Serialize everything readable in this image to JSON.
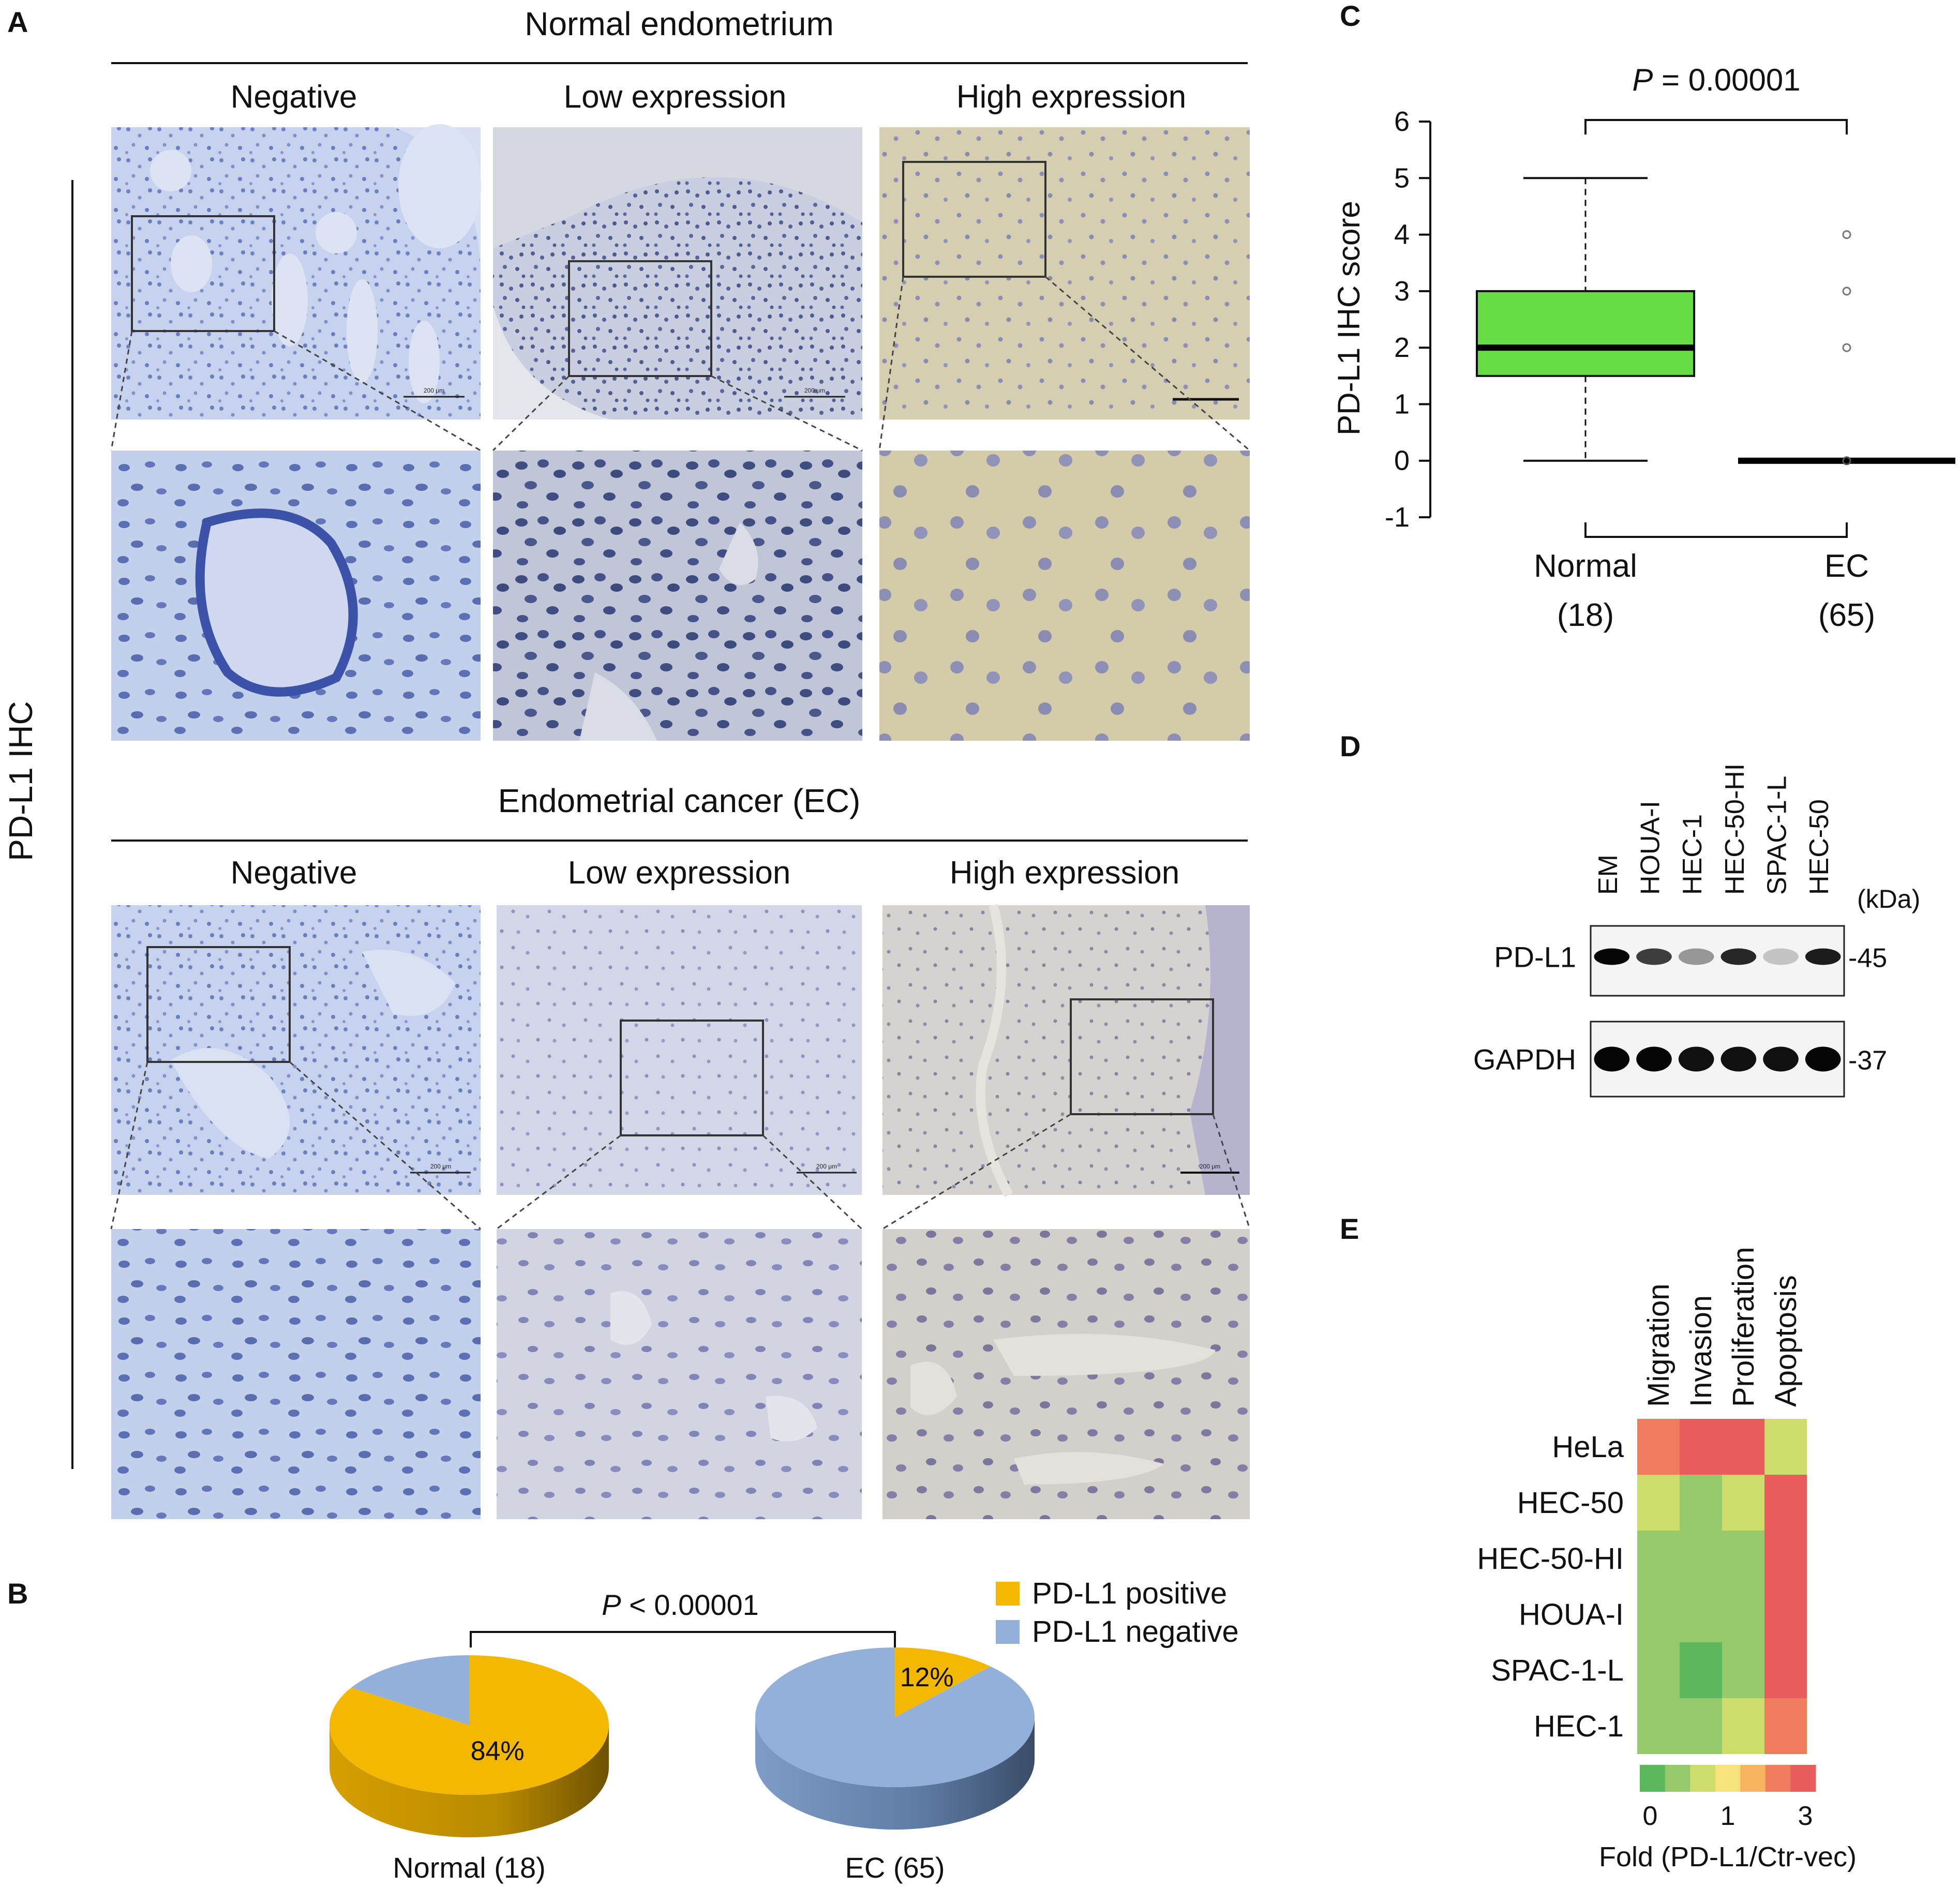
{
  "panels": {
    "A": "A",
    "B": "B",
    "C": "C",
    "D": "D",
    "E": "E"
  },
  "panel_a": {
    "side_label": "PD-L1 IHC",
    "normal_title": "Normal endometrium",
    "cancer_title": "Endometrial cancer (EC)",
    "columns": [
      "Negative",
      "Low expression",
      "High expression"
    ],
    "scale_bar_text": "200 μm"
  },
  "chart_data": [
    {
      "id": "pie_B",
      "type": "pie",
      "title": "",
      "legend": [
        "PD-L1 positive",
        "PD-L1 negative"
      ],
      "legend_placement": "top-right",
      "colors": {
        "positive": "#F5B800",
        "negative": "#92B0DA"
      },
      "p_value_label": "P < 0.00001",
      "pies": [
        {
          "label": "Normal (18)",
          "positive": 84,
          "negative": 16,
          "shown_label": "84%"
        },
        {
          "label": "EC (65)",
          "positive": 12,
          "negative": 88,
          "shown_label": "12%"
        }
      ]
    },
    {
      "id": "box_C",
      "type": "box",
      "ylabel": "PD-L1 IHC score",
      "ylim": [
        -1,
        6
      ],
      "yticks": [
        -1,
        0,
        1,
        2,
        3,
        4,
        5,
        6
      ],
      "p_value_label": "P = 0.00001",
      "box_color": "#66DD44",
      "groups": [
        {
          "name": "Normal",
          "n_label": "(18)",
          "min": 0,
          "q1": 1.5,
          "median": 2,
          "q3": 3,
          "max": 5,
          "outliers": []
        },
        {
          "name": "EC",
          "n_label": "(65)",
          "min": 0,
          "q1": 0,
          "median": 0,
          "q3": 0,
          "max": 0,
          "outliers": [
            4,
            3,
            2
          ]
        }
      ]
    },
    {
      "id": "heatmap_E",
      "type": "heatmap",
      "columns": [
        "Migration",
        "Invasion",
        "Proliferation",
        "Apoptosis"
      ],
      "rows": [
        "HeLa",
        "HEC-50",
        "HEC-50-HI",
        "HOUA-I",
        "SPAC-1-L",
        "HEC-1"
      ],
      "values": [
        [
          2.6,
          3.0,
          2.8,
          0.9
        ],
        [
          0.9,
          0.6,
          0.8,
          2.8
        ],
        [
          0.5,
          0.3,
          0.6,
          3.0
        ],
        [
          0.6,
          0.5,
          0.7,
          2.8
        ],
        [
          0.4,
          0.2,
          0.6,
          3.0
        ],
        [
          0.7,
          0.6,
          0.9,
          2.5
        ]
      ],
      "scale_ticks": [
        0,
        1,
        3
      ],
      "scale_colors": [
        "#5CB85C",
        "#95C96B",
        "#CDDC6B",
        "#F6E27A",
        "#F7B35F",
        "#F07C5E",
        "#E85C5C"
      ],
      "scale_label": "Fold (PD-L1/Ctr-vec)"
    }
  ],
  "panel_d": {
    "lanes": [
      "EM",
      "HOUA-I",
      "HEC-1",
      "HEC-50-HI",
      "SPAC-1-L",
      "HEC-50"
    ],
    "unit": "(kDa)",
    "bands": [
      {
        "name": "PD-L1",
        "marker": "-45",
        "intensity": [
          1.0,
          0.75,
          0.35,
          0.85,
          0.15,
          0.9
        ]
      },
      {
        "name": "GAPDH",
        "marker": "-37",
        "intensity": [
          1.0,
          1.0,
          0.95,
          0.95,
          0.95,
          1.0
        ]
      }
    ]
  }
}
